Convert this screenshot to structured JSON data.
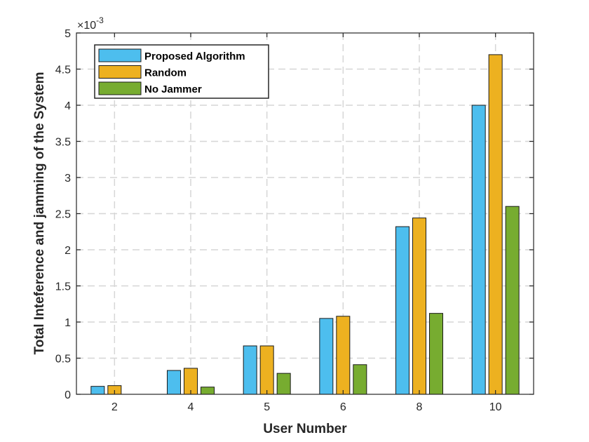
{
  "chart_data": {
    "type": "bar",
    "categories": [
      "2",
      "4",
      "5",
      "6",
      "8",
      "10"
    ],
    "xlabel": "User Number",
    "ylabel": "Total Inteference and jamming of the System",
    "y_exponent_label": "×10",
    "y_exponent_power": "-3",
    "ylim": [
      0,
      5
    ],
    "yticks": [
      "0",
      "0.5",
      "1",
      "1.5",
      "2",
      "2.5",
      "3",
      "3.5",
      "4",
      "4.5",
      "5"
    ],
    "grid": true,
    "legend_position": "top-left",
    "series": [
      {
        "name": "Proposed Algorithm",
        "color": "#4DBEEE",
        "values": [
          0.11,
          0.33,
          0.67,
          1.05,
          2.32,
          4.0
        ]
      },
      {
        "name": "Random",
        "color": "#EDB120",
        "values": [
          0.12,
          0.36,
          0.67,
          1.08,
          2.44,
          4.7
        ]
      },
      {
        "name": "No Jammer",
        "color": "#77AC30",
        "values": [
          0.0,
          0.1,
          0.29,
          0.41,
          1.12,
          2.6
        ]
      }
    ]
  }
}
